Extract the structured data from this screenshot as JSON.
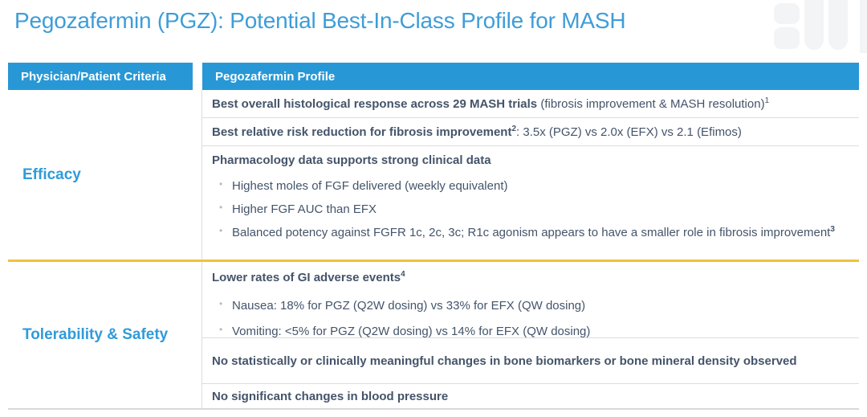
{
  "title": "Pegozafermin (PGZ): Potential Best-In-Class Profile for MASH",
  "colors": {
    "accent_blue": "#2897D6",
    "title_blue": "#3E9DD8",
    "body_text": "#44546A",
    "section_divider_yellow": "#EFC23E",
    "row_border_gray": "#DCDCDC"
  },
  "table": {
    "header": {
      "criteria": "Physician/Patient Criteria",
      "profile": "Pegozafermin Profile"
    },
    "sections": [
      {
        "id": "efficacy",
        "criteria_label": "Efficacy",
        "rows": [
          {
            "segments": [
              {
                "t": "Best overall histological response across 29 MASH trials",
                "b": true
              },
              {
                "t": " (fibrosis improvement & MASH resolution)",
                "b": false
              },
              {
                "t": "1",
                "b": false,
                "sup": true
              }
            ]
          },
          {
            "segments": [
              {
                "t": "Best relative risk reduction for fibrosis improvement",
                "b": true
              },
              {
                "t": "2",
                "b": true,
                "sup": true
              },
              {
                "t": ": 3.5x (PGZ) vs 2.0x (EFX) vs 2.1 (Efimos)",
                "b": false
              }
            ]
          },
          {
            "segments": [
              {
                "t": "Pharmacology data supports strong clinical data",
                "b": true
              }
            ],
            "bullets": [
              [
                {
                  "t": "Highest moles of FGF delivered (weekly equivalent)",
                  "b": false
                }
              ],
              [
                {
                  "t": "Higher FGF AUC than EFX",
                  "b": false
                }
              ],
              [
                {
                  "t": "Balanced potency against FGFR 1c, 2c, 3c; R1c agonism appears to have a smaller role in fibrosis improvement",
                  "b": false
                },
                {
                  "t": "3",
                  "b": true,
                  "sup": true
                }
              ]
            ]
          }
        ]
      },
      {
        "id": "tolerability",
        "criteria_label": "Tolerability & Safety",
        "rows": [
          {
            "segments": [
              {
                "t": "Lower rates of GI adverse events",
                "b": true
              },
              {
                "t": "4",
                "b": true,
                "sup": true
              }
            ],
            "bullets": [
              [
                {
                  "t": "Nausea: 18% for PGZ (Q2W dosing) vs 33% for EFX (QW dosing)",
                  "b": false
                }
              ],
              [
                {
                  "t": "Vomiting: <5% for PGZ (Q2W dosing) vs 14% for EFX (QW dosing)",
                  "b": false
                }
              ]
            ]
          },
          {
            "segments": [
              {
                "t": "No statistically or clinically meaningful changes in bone biomarkers or bone mineral density observed",
                "b": true
              }
            ]
          },
          {
            "segments": [
              {
                "t": "No significant changes in blood pressure",
                "b": true
              }
            ]
          }
        ]
      }
    ]
  }
}
